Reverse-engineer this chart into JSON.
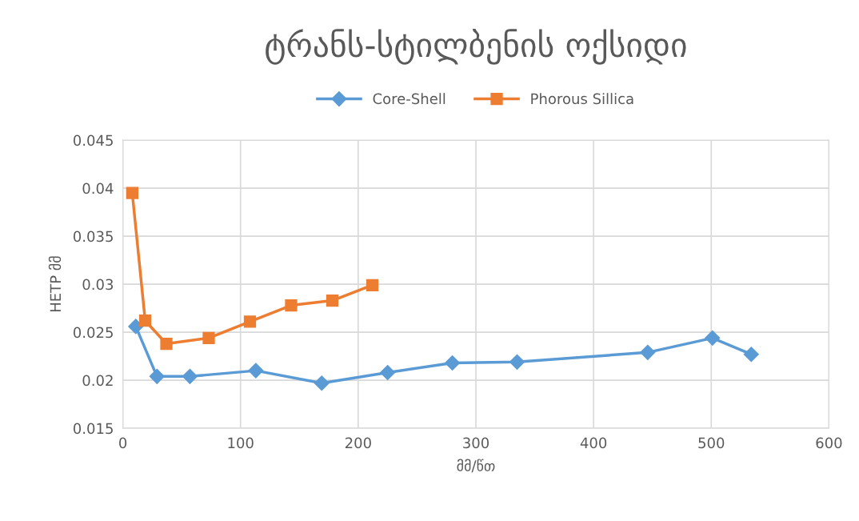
{
  "chart_data": {
    "type": "line",
    "title": "ტრანს-სტილბენის ოქსიდი",
    "xlabel": "მმ/წთ",
    "ylabel": "HETP მმ",
    "series": [
      {
        "name": "Core-Shell",
        "color": "#5b9bd5",
        "marker": "diamond",
        "x": [
          11,
          29,
          57,
          113,
          169,
          225,
          280,
          335,
          446,
          501,
          534
        ],
        "values": [
          0.0256,
          0.0204,
          0.0204,
          0.021,
          0.0197,
          0.0208,
          0.0218,
          0.0219,
          0.0229,
          0.0244,
          0.0227
        ]
      },
      {
        "name": "Phorous Sillica",
        "color": "#ed7d31",
        "marker": "square",
        "x": [
          8,
          19,
          37,
          73,
          108,
          143,
          178,
          212
        ],
        "values": [
          0.0395,
          0.0262,
          0.0238,
          0.0244,
          0.0261,
          0.0278,
          0.0283,
          0.0299
        ]
      }
    ],
    "xlim": [
      0,
      600
    ],
    "xticks": [
      0,
      100,
      200,
      300,
      400,
      500,
      600
    ],
    "ylim": [
      0.015,
      0.045
    ],
    "yticks": [
      0.015,
      0.02,
      0.025,
      0.03,
      0.035,
      0.04,
      0.045
    ],
    "grid": true,
    "legend": "top",
    "line_style": "solid"
  }
}
